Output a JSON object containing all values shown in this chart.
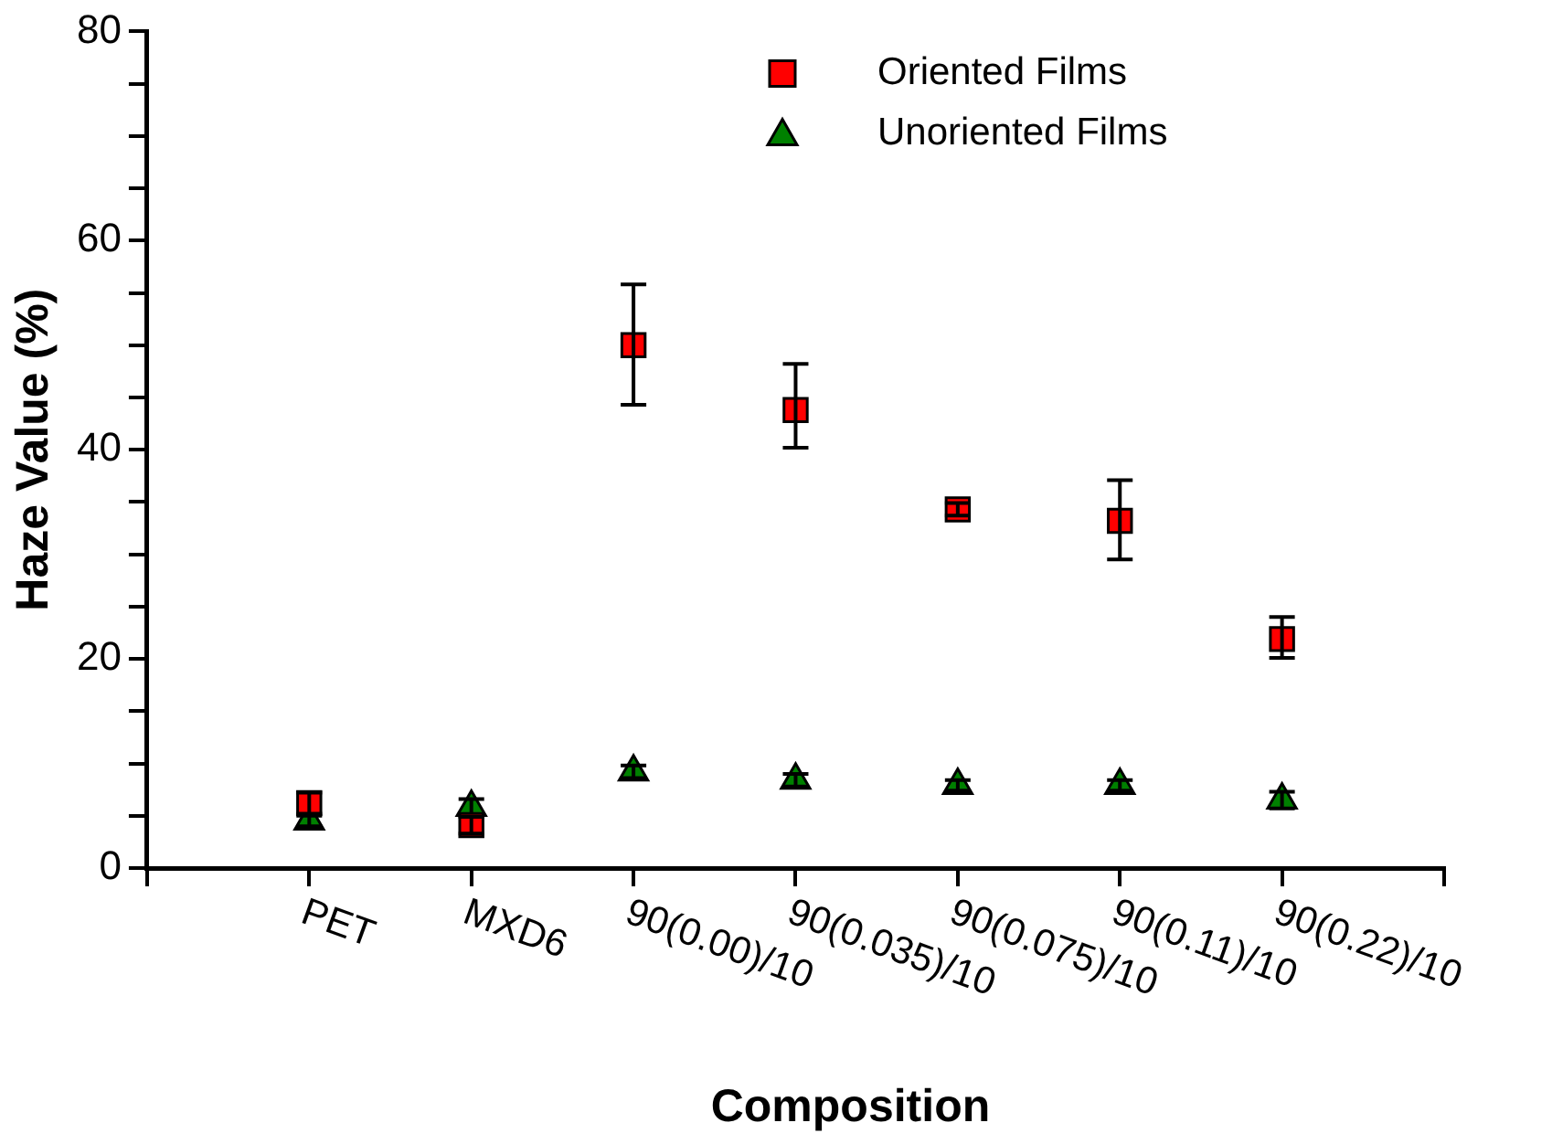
{
  "chart_data": {
    "type": "scatter",
    "xlabel": "Composition",
    "ylabel": "Haze Value (%)",
    "categories": [
      null,
      "PET",
      "MXD6",
      "90(0.00)/10",
      "90(0.035)/10",
      "90(0.075)/10",
      "90(0.11)/10",
      "90(0.22)/10",
      null
    ],
    "series": [
      {
        "name": "Oriented Films",
        "color": "#ff0000",
        "marker": "square",
        "values": [
          null,
          6.2,
          4.1,
          50.0,
          43.8,
          34.3,
          33.2,
          21.9,
          null
        ],
        "errors": [
          null,
          1.0,
          0.8,
          [
            44.3,
            55.8
          ],
          [
            40.2,
            48.2
          ],
          0.6,
          [
            29.5,
            37.1
          ],
          [
            20.1,
            24.0
          ],
          null
        ]
      },
      {
        "name": "Unoriented Films",
        "color": "#008000",
        "marker": "triangle",
        "values": [
          null,
          4.5,
          5.8,
          9.2,
          8.4,
          7.9,
          7.9,
          6.5,
          null
        ],
        "errors": [
          null,
          0.5,
          0.8,
          0.6,
          0.6,
          0.5,
          0.5,
          0.8,
          null
        ]
      }
    ],
    "ylim": [
      0,
      80
    ],
    "yticks": [
      0,
      {
        "value": 5,
        "label": null
      },
      {
        "value": 10,
        "label": null
      },
      {
        "value": 15,
        "label": null
      },
      20,
      {
        "value": 25,
        "label": null
      },
      {
        "value": 30,
        "label": null
      },
      {
        "value": 35,
        "label": null
      },
      40,
      {
        "value": 45,
        "label": null
      },
      {
        "value": 50,
        "label": null
      },
      {
        "value": 55,
        "label": null
      },
      60,
      {
        "value": 65,
        "label": null
      },
      {
        "value": 70,
        "label": null
      },
      {
        "value": 75,
        "label": null
      },
      80
    ],
    "grid": false,
    "legend": "top right"
  }
}
